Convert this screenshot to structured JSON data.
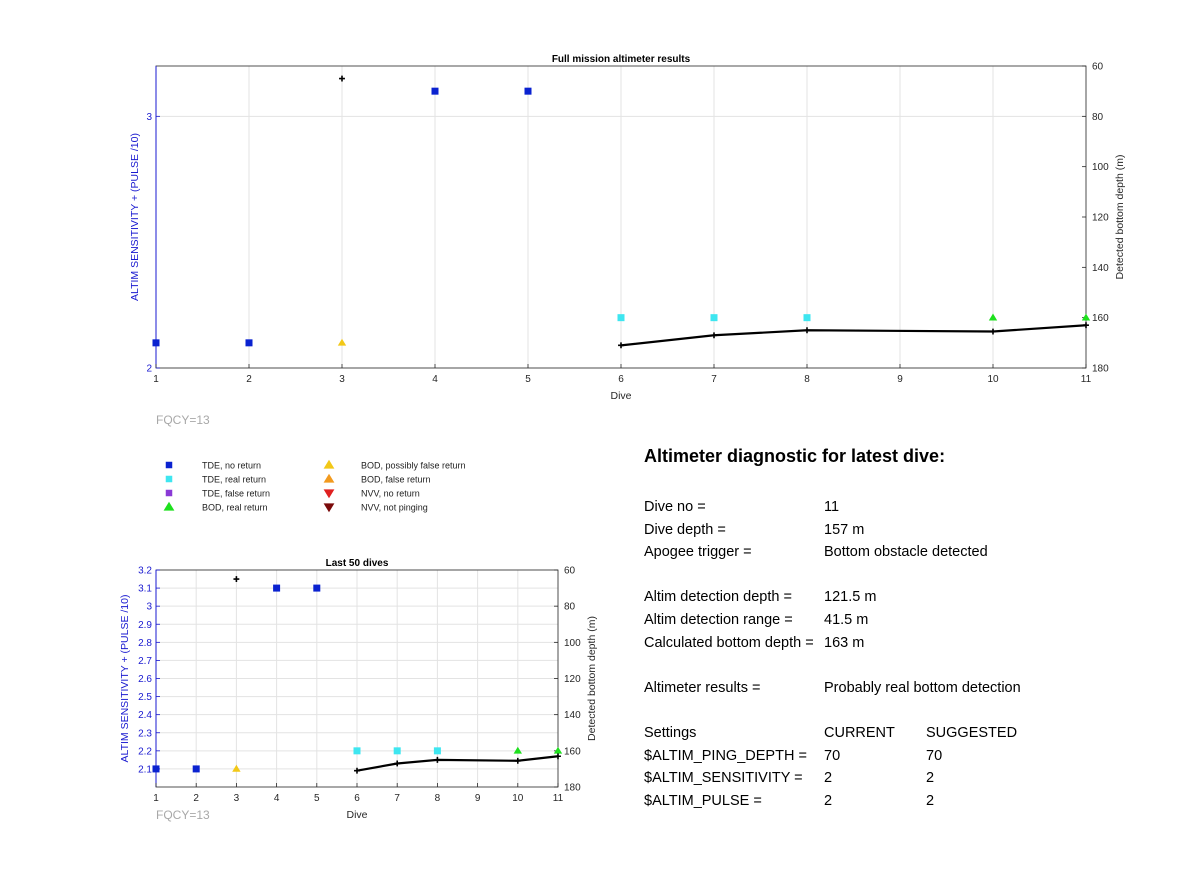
{
  "chart_data": [
    {
      "type": "scatter",
      "title": "Full mission altimeter results",
      "xlabel": "Dive",
      "ylabel": "ALTIM SENSITIVITY + (PULSE /10)",
      "y2label": "Detected bottom depth (m)",
      "xlim": [
        1,
        11
      ],
      "ylim": [
        2,
        3.2
      ],
      "y2lim": [
        60,
        180
      ],
      "y2_reversed": true,
      "grid": "on",
      "xticks": [
        "1",
        "2",
        "3",
        "4",
        "5",
        "6",
        "7",
        "8",
        "9",
        "10",
        "11"
      ],
      "yticks": [
        "2",
        "3"
      ],
      "y2ticks": [
        "60",
        "80",
        "100",
        "120",
        "140",
        "160",
        "180"
      ],
      "series": [
        {
          "name": "TDE, no return",
          "axis": "left",
          "marker": "square",
          "color": "#0a22d0",
          "x": [
            1,
            2,
            4,
            5
          ],
          "y": [
            2.1,
            2.1,
            3.1,
            3.1
          ]
        },
        {
          "name": "TDE, real return",
          "axis": "left",
          "marker": "square",
          "color": "#3ee6f0",
          "x": [
            6,
            7,
            8
          ],
          "y": [
            2.2,
            2.2,
            2.2
          ]
        },
        {
          "name": "BOD, possibly false return",
          "axis": "left",
          "marker": "triangle-up",
          "color": "#f2c817",
          "x": [
            3
          ],
          "y": [
            2.1
          ]
        },
        {
          "name": "BOD, real return",
          "axis": "left",
          "marker": "triangle-up",
          "color": "#1ee01e",
          "x": [
            10,
            11
          ],
          "y": [
            2.2,
            2.2
          ]
        },
        {
          "axis": "right",
          "marker": "plus",
          "color": "#000000",
          "line": false,
          "x": [
            3
          ],
          "y": [
            65
          ]
        },
        {
          "axis": "right",
          "marker": "plus",
          "color": "#000000",
          "line": true,
          "x": [
            6,
            7,
            8,
            10,
            11
          ],
          "y": [
            171,
            167,
            165,
            165.5,
            163
          ]
        }
      ],
      "annotation": "FQCY=13"
    },
    {
      "type": "scatter",
      "title": "Last 50 dives",
      "xlabel": "Dive",
      "ylabel": "ALTIM SENSITIVITY + (PULSE /10)",
      "y2label": "Detected bottom depth (m)",
      "xlim": [
        1,
        11
      ],
      "ylim": [
        2,
        3.2
      ],
      "y2lim": [
        60,
        180
      ],
      "y2_reversed": true,
      "grid": "on",
      "xticks": [
        "1",
        "2",
        "3",
        "4",
        "5",
        "6",
        "7",
        "8",
        "9",
        "10",
        "11"
      ],
      "yticks": [
        "2.1",
        "2.2",
        "2.3",
        "2.4",
        "2.5",
        "2.6",
        "2.7",
        "2.8",
        "2.9",
        "3",
        "3.1",
        "3.2"
      ],
      "y2ticks": [
        "60",
        "80",
        "100",
        "120",
        "140",
        "160",
        "180"
      ],
      "series": [
        {
          "name": "TDE, no return",
          "axis": "left",
          "marker": "square",
          "color": "#0a22d0",
          "x": [
            1,
            2,
            4,
            5
          ],
          "y": [
            2.1,
            2.1,
            3.1,
            3.1
          ]
        },
        {
          "name": "TDE, real return",
          "axis": "left",
          "marker": "square",
          "color": "#3ee6f0",
          "x": [
            6,
            7,
            8
          ],
          "y": [
            2.2,
            2.2,
            2.2
          ]
        },
        {
          "name": "BOD, possibly false return",
          "axis": "left",
          "marker": "triangle-up",
          "color": "#f2c817",
          "x": [
            3
          ],
          "y": [
            2.1
          ]
        },
        {
          "name": "BOD, real return",
          "axis": "left",
          "marker": "triangle-up",
          "color": "#1ee01e",
          "x": [
            10,
            11
          ],
          "y": [
            2.2,
            2.2
          ]
        },
        {
          "axis": "right",
          "marker": "plus",
          "color": "#000000",
          "line": false,
          "x": [
            3
          ],
          "y": [
            65
          ]
        },
        {
          "axis": "right",
          "marker": "plus",
          "color": "#000000",
          "line": true,
          "x": [
            6,
            7,
            8,
            10,
            11
          ],
          "y": [
            171,
            167,
            165,
            165.5,
            163
          ]
        }
      ],
      "annotation": "FQCY=13"
    }
  ],
  "legend": {
    "items": [
      {
        "label": "TDE, no return",
        "marker": "square",
        "color": "#0a22d0"
      },
      {
        "label": "TDE, real return",
        "marker": "square",
        "color": "#3ee6f0"
      },
      {
        "label": "TDE, false return",
        "marker": "square",
        "color": "#8a3ad6"
      },
      {
        "label": "BOD, real return",
        "marker": "triangle-up",
        "color": "#1ee01e"
      },
      {
        "label": "BOD, possibly false return",
        "marker": "triangle-up",
        "color": "#f2c817"
      },
      {
        "label": "BOD, false return",
        "marker": "triangle-up",
        "color": "#f29a1e"
      },
      {
        "label": "NVV, no return",
        "marker": "triangle-down",
        "color": "#e02020"
      },
      {
        "label": "NVV, not pinging",
        "marker": "triangle-down",
        "color": "#7a0a0a"
      }
    ]
  },
  "colors": {
    "left_axis": "#1a1ad0",
    "right_axis": "#000000",
    "grid": "#e3e3e3",
    "annotation": "#a8a8a8"
  },
  "diagnostic": {
    "title": "Altimeter diagnostic for latest dive:",
    "dive_no_label": "Dive no =",
    "dive_no_value": "11",
    "dive_depth_label": "Dive depth =",
    "dive_depth_value": "157 m",
    "apogee_label": "Apogee trigger =",
    "apogee_value": "Bottom obstacle detected",
    "detect_depth_label": "Altim detection depth =",
    "detect_depth_value": "121.5 m",
    "detect_range_label": "Altim detection range =",
    "detect_range_value": "41.5 m",
    "calc_depth_label": "Calculated bottom depth =",
    "calc_depth_value": "163 m",
    "results_label": "Altimeter results =",
    "results_value": "Probably real bottom detection",
    "settings_label": "Settings",
    "current_label": "CURRENT",
    "suggested_label": "SUGGESTED",
    "settings": [
      {
        "name": "$ALTIM_PING_DEPTH =",
        "current": "70",
        "suggested": "70"
      },
      {
        "name": "$ALTIM_SENSITIVITY =",
        "current": "2",
        "suggested": "2"
      },
      {
        "name": "$ALTIM_PULSE =",
        "current": "2",
        "suggested": "2"
      }
    ]
  }
}
